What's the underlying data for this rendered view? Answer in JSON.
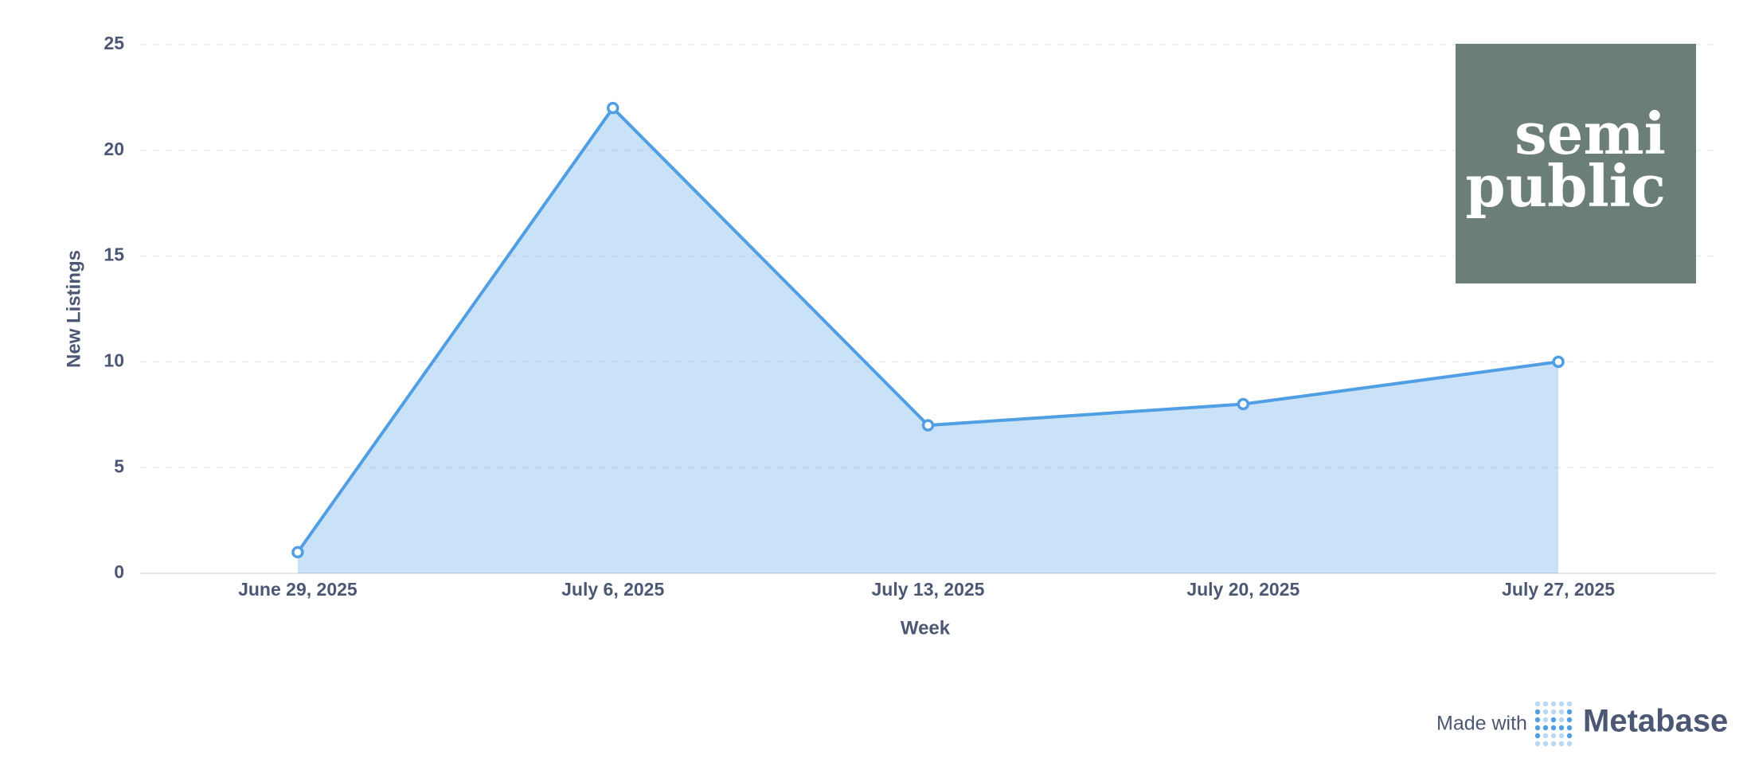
{
  "chart_data": {
    "type": "area",
    "categories": [
      "June 29, 2025",
      "July 6, 2025",
      "July 13, 2025",
      "July 20, 2025",
      "July 27, 2025"
    ],
    "series": [
      {
        "name": "New Listings",
        "color": "#509ee3",
        "values": [
          1,
          22,
          7,
          8,
          10
        ]
      }
    ],
    "xlabel": "Week",
    "ylabel": "New Listings",
    "ylim": [
      0,
      25
    ],
    "yticks": [
      0,
      5,
      10,
      15,
      20,
      25
    ],
    "grid": true
  },
  "logo": {
    "lines": [
      "semi",
      "public"
    ]
  },
  "footer": {
    "prefix": "Made with",
    "brand": "Metabase"
  }
}
